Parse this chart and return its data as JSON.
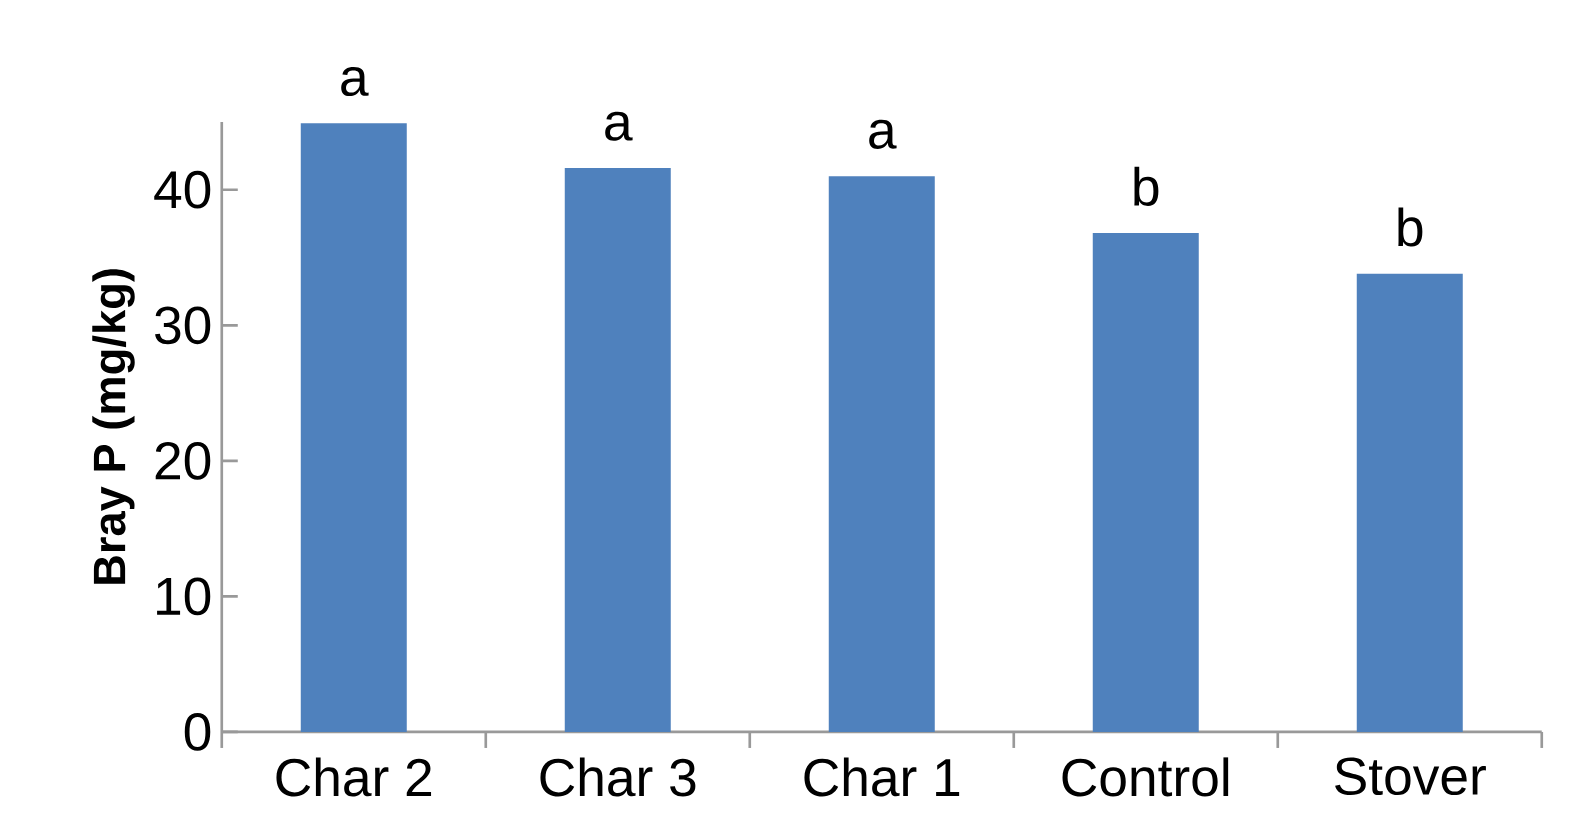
{
  "chart_data": {
    "type": "bar",
    "ylabel": "Bray P (mg/kg)",
    "categories": [
      "Char 2",
      "Char 3",
      "Char 1",
      "Control",
      "Stover"
    ],
    "values": [
      44.9,
      41.6,
      41.0,
      36.8,
      33.8
    ],
    "color": "#4f81bd",
    "ylim": [
      0,
      45
    ],
    "yticks": [
      0,
      10,
      20,
      30,
      40
    ],
    "grid": false,
    "annotations": [
      {
        "text": "a",
        "x": "Char 2",
        "y": 44.9
      },
      {
        "text": "a",
        "x": "Char 3",
        "y": 41.6
      },
      {
        "text": "a",
        "x": "Char 1",
        "y": 41.0
      },
      {
        "text": "b",
        "x": "Control",
        "y": 36.8
      },
      {
        "text": "b",
        "x": "Stover",
        "y": 33.8
      }
    ]
  }
}
